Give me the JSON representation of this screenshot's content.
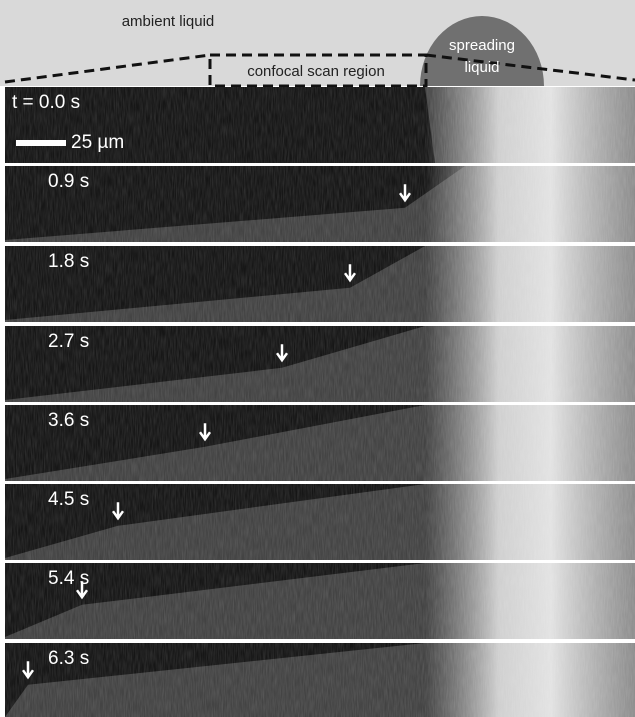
{
  "schematic": {
    "ambient_label": "ambient liquid",
    "scan_label": "confocal scan region",
    "spreading_label_lines": [
      "spreading",
      "liquid"
    ]
  },
  "scale_bar": "25 µm",
  "panels": [
    {
      "time": "t = 0.0 s"
    },
    {
      "time": "0.9 s"
    },
    {
      "time": "1.8 s"
    },
    {
      "time": "2.7 s"
    },
    {
      "time": "3.6 s"
    },
    {
      "time": "4.5 s"
    },
    {
      "time": "5.4 s"
    },
    {
      "time": "6.3 s"
    }
  ]
}
